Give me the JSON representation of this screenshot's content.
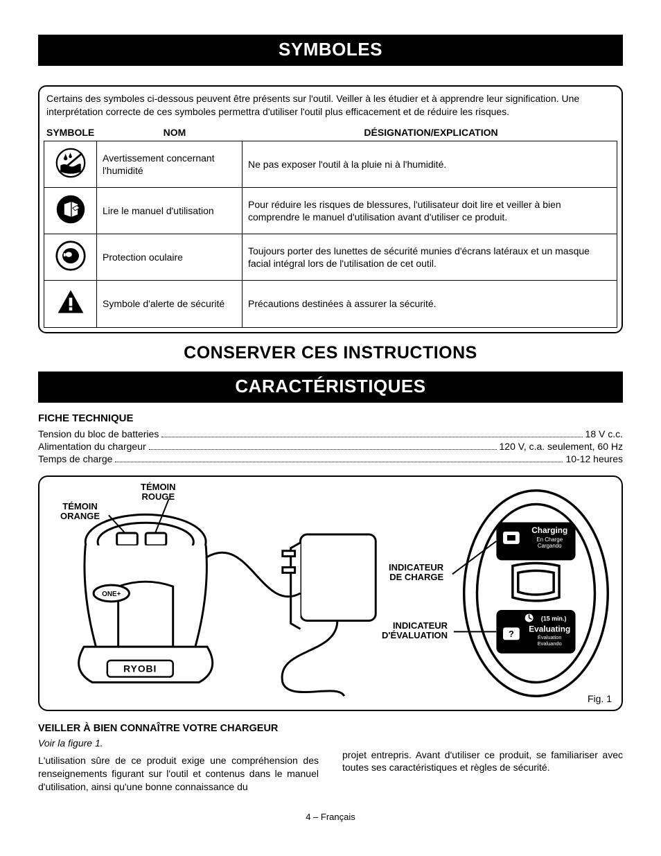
{
  "headings": {
    "symboles": "SYMBOLES",
    "conserver": "CONSERVER CES INSTRUCTIONS",
    "caract": "CARACTÉRISTIQUES",
    "fiche": "FICHE TECHNIQUE"
  },
  "intro": "Certains des symboles ci-dessous peuvent être présents sur l'outil. Veiller à les étudier et à apprendre leur signification. Une interprétation correcte de ces symboles permettra d'utiliser l'outil plus efficacement et de réduire les risques.",
  "table_head": {
    "symbole": "SYMBOLE",
    "nom": "NOM",
    "desc": "DÉSIGNATION/EXPLICATION"
  },
  "symbols": [
    {
      "icon": "wet",
      "nom": "Avertissement concernant l'humidité",
      "desc": "Ne pas exposer l'outil à la pluie ni à l'humidité."
    },
    {
      "icon": "manual",
      "nom": "Lire le manuel d'utilisation",
      "desc": "Pour réduire les risques de blessures, l'utilisateur doit lire et veiller à bien comprendre le manuel d'utilisation avant d'utiliser ce produit."
    },
    {
      "icon": "eye",
      "nom": "Protection oculaire",
      "desc": "Toujours porter des lunettes de sécurité munies d'écrans latéraux et un masque facial intégral lors de l'utilisation de cet outil."
    },
    {
      "icon": "alert",
      "nom": "Symbole d'alerte de sécurité",
      "desc": "Précautions destinées à assurer la sécurité."
    }
  ],
  "specs": [
    {
      "label": "Tension du bloc de batteries",
      "value": "18 V c.c."
    },
    {
      "label": "Alimentation du chargeur",
      "value": "120 V, c.a. seulement, 60 Hz"
    },
    {
      "label": "Temps de charge",
      "value": "10-12 heures"
    }
  ],
  "figure": {
    "temoin_rouge": "TÉMOIN\nROUGE",
    "temoin_orange": "TÉMOIN\nORANGE",
    "indicateur_charge": "INDICATEUR\nDE CHARGE",
    "indicateur_eval": "INDICATEUR\nD'ÉVALUATION",
    "charging": "Charging",
    "charging_sub1": "En Charge",
    "charging_sub2": "Cargando",
    "eval_time": "(15 min.)",
    "evaluating": "Evaluating",
    "eval_sub1": "Évaluation",
    "eval_sub2": "Evaluando",
    "brand": "RYOBI",
    "one_plus": "ONE+",
    "caption": "Fig. 1"
  },
  "bottom": {
    "head": "VEILLER À BIEN CONNAÎTRE VOTRE CHARGEUR",
    "ital": "Voir la figure 1.",
    "p1": "L'utilisation sûre de ce produit exige une compréhension des renseignements figurant sur l'outil et contenus dans le manuel d'utilisation, ainsi qu'une bonne connaissance du",
    "p2": "projet entrepris. Avant d'utiliser ce produit, se familiariser avec toutes ses caractéristiques et règles de sécurité."
  },
  "footer": "4 – Français",
  "colors": {
    "black": "#000000",
    "white": "#ffffff"
  }
}
